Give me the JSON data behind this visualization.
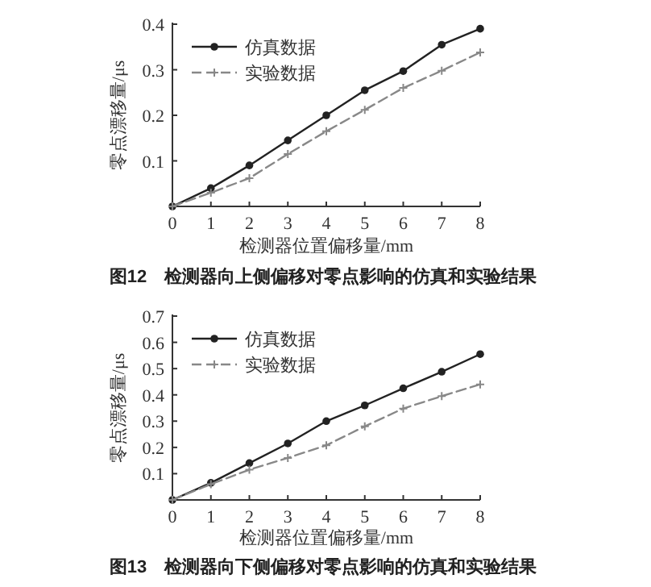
{
  "chart_data": [
    {
      "type": "line",
      "xlabel": "检测器位置偏移量/mm",
      "ylabel": "零点漂移量/μs",
      "annotations": [
        "图12　检测器向上侧偏移对零点影响的仿真和实验结果"
      ],
      "x": [
        0,
        1,
        2,
        3,
        4,
        5,
        6,
        7,
        8
      ],
      "xlim": [
        0,
        8
      ],
      "xticks": [
        0,
        1,
        2,
        3,
        4,
        5,
        6,
        7,
        8
      ],
      "ylim": [
        0,
        0.4
      ],
      "yticks": [
        0.1,
        0.2,
        0.3,
        0.4
      ],
      "legend": "top left",
      "grid": false,
      "series": [
        {
          "name": "仿真数据",
          "color": "#222222",
          "marker": "circle",
          "line_style": "solid",
          "values": [
            0,
            0.04,
            0.09,
            0.145,
            0.2,
            0.255,
            0.297,
            0.355,
            0.39
          ]
        },
        {
          "name": "实验数据",
          "color": "#888888",
          "marker": "cross",
          "line_style": "dashed",
          "values": [
            0,
            0.03,
            0.062,
            0.115,
            0.165,
            0.212,
            0.26,
            0.298,
            0.338
          ]
        }
      ]
    },
    {
      "type": "line",
      "xlabel": "检测器位置偏移量/mm",
      "ylabel": "零点漂移量/μs",
      "annotations": [
        "图13　检测器向下侧偏移对零点影响的仿真和实验结果"
      ],
      "x": [
        0,
        1,
        2,
        3,
        4,
        5,
        6,
        7,
        8
      ],
      "xlim": [
        0,
        8
      ],
      "xticks": [
        0,
        1,
        2,
        3,
        4,
        5,
        6,
        7,
        8
      ],
      "ylim": [
        0,
        0.7
      ],
      "yticks": [
        0.1,
        0.2,
        0.3,
        0.4,
        0.5,
        0.6,
        0.7
      ],
      "legend": "top left",
      "grid": false,
      "series": [
        {
          "name": "仿真数据",
          "color": "#222222",
          "marker": "circle",
          "line_style": "solid",
          "values": [
            0,
            0.065,
            0.14,
            0.215,
            0.3,
            0.36,
            0.425,
            0.488,
            0.555
          ]
        },
        {
          "name": "实验数据",
          "color": "#888888",
          "marker": "cross",
          "line_style": "dashed",
          "values": [
            0,
            0.06,
            0.115,
            0.16,
            0.208,
            0.28,
            0.348,
            0.395,
            0.44
          ]
        }
      ]
    }
  ]
}
